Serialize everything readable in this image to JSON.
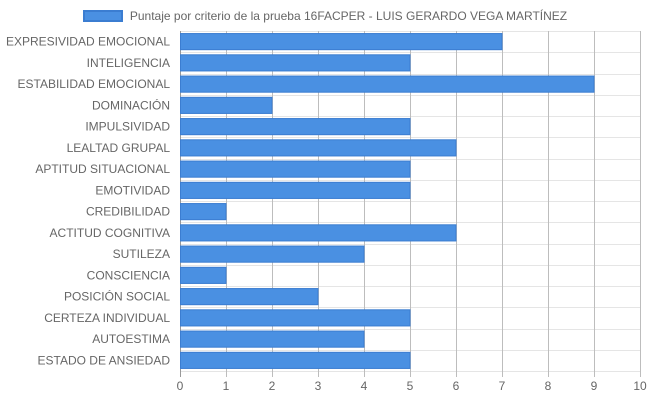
{
  "chart_data": {
    "type": "bar",
    "orientation": "horizontal",
    "categories": [
      "EXPRESIVIDAD EMOCIONAL",
      "INTELIGENCIA",
      "ESTABILIDAD EMOCIONAL",
      "DOMINACIÓN",
      "IMPULSIVIDAD",
      "LEALTAD GRUPAL",
      "APTITUD SITUACIONAL",
      "EMOTIVIDAD",
      "CREDIBILIDAD",
      "ACTITUD COGNITIVA",
      "SUTILEZA",
      "CONSCIENCIA",
      "POSICIÓN SOCIAL",
      "CERTEZA INDIVIDUAL",
      "AUTOESTIMA",
      "ESTADO DE ANSIEDAD"
    ],
    "series": [
      {
        "name": "Puntaje por criterio de la prueba 16FACPER - LUIS GERARDO VEGA MARTÍNEZ",
        "values": [
          7,
          5,
          9,
          2,
          5,
          6,
          5,
          5,
          1,
          6,
          4,
          1,
          3,
          5,
          4,
          5
        ],
        "color": "#4a90e2",
        "border_color": "#3b7dd1"
      }
    ],
    "xlim": [
      0,
      10
    ],
    "xticks": [
      "0",
      "1",
      "2",
      "3",
      "4",
      "5",
      "6",
      "7",
      "8",
      "9",
      "10"
    ],
    "grid": true,
    "legend_position": "top"
  }
}
